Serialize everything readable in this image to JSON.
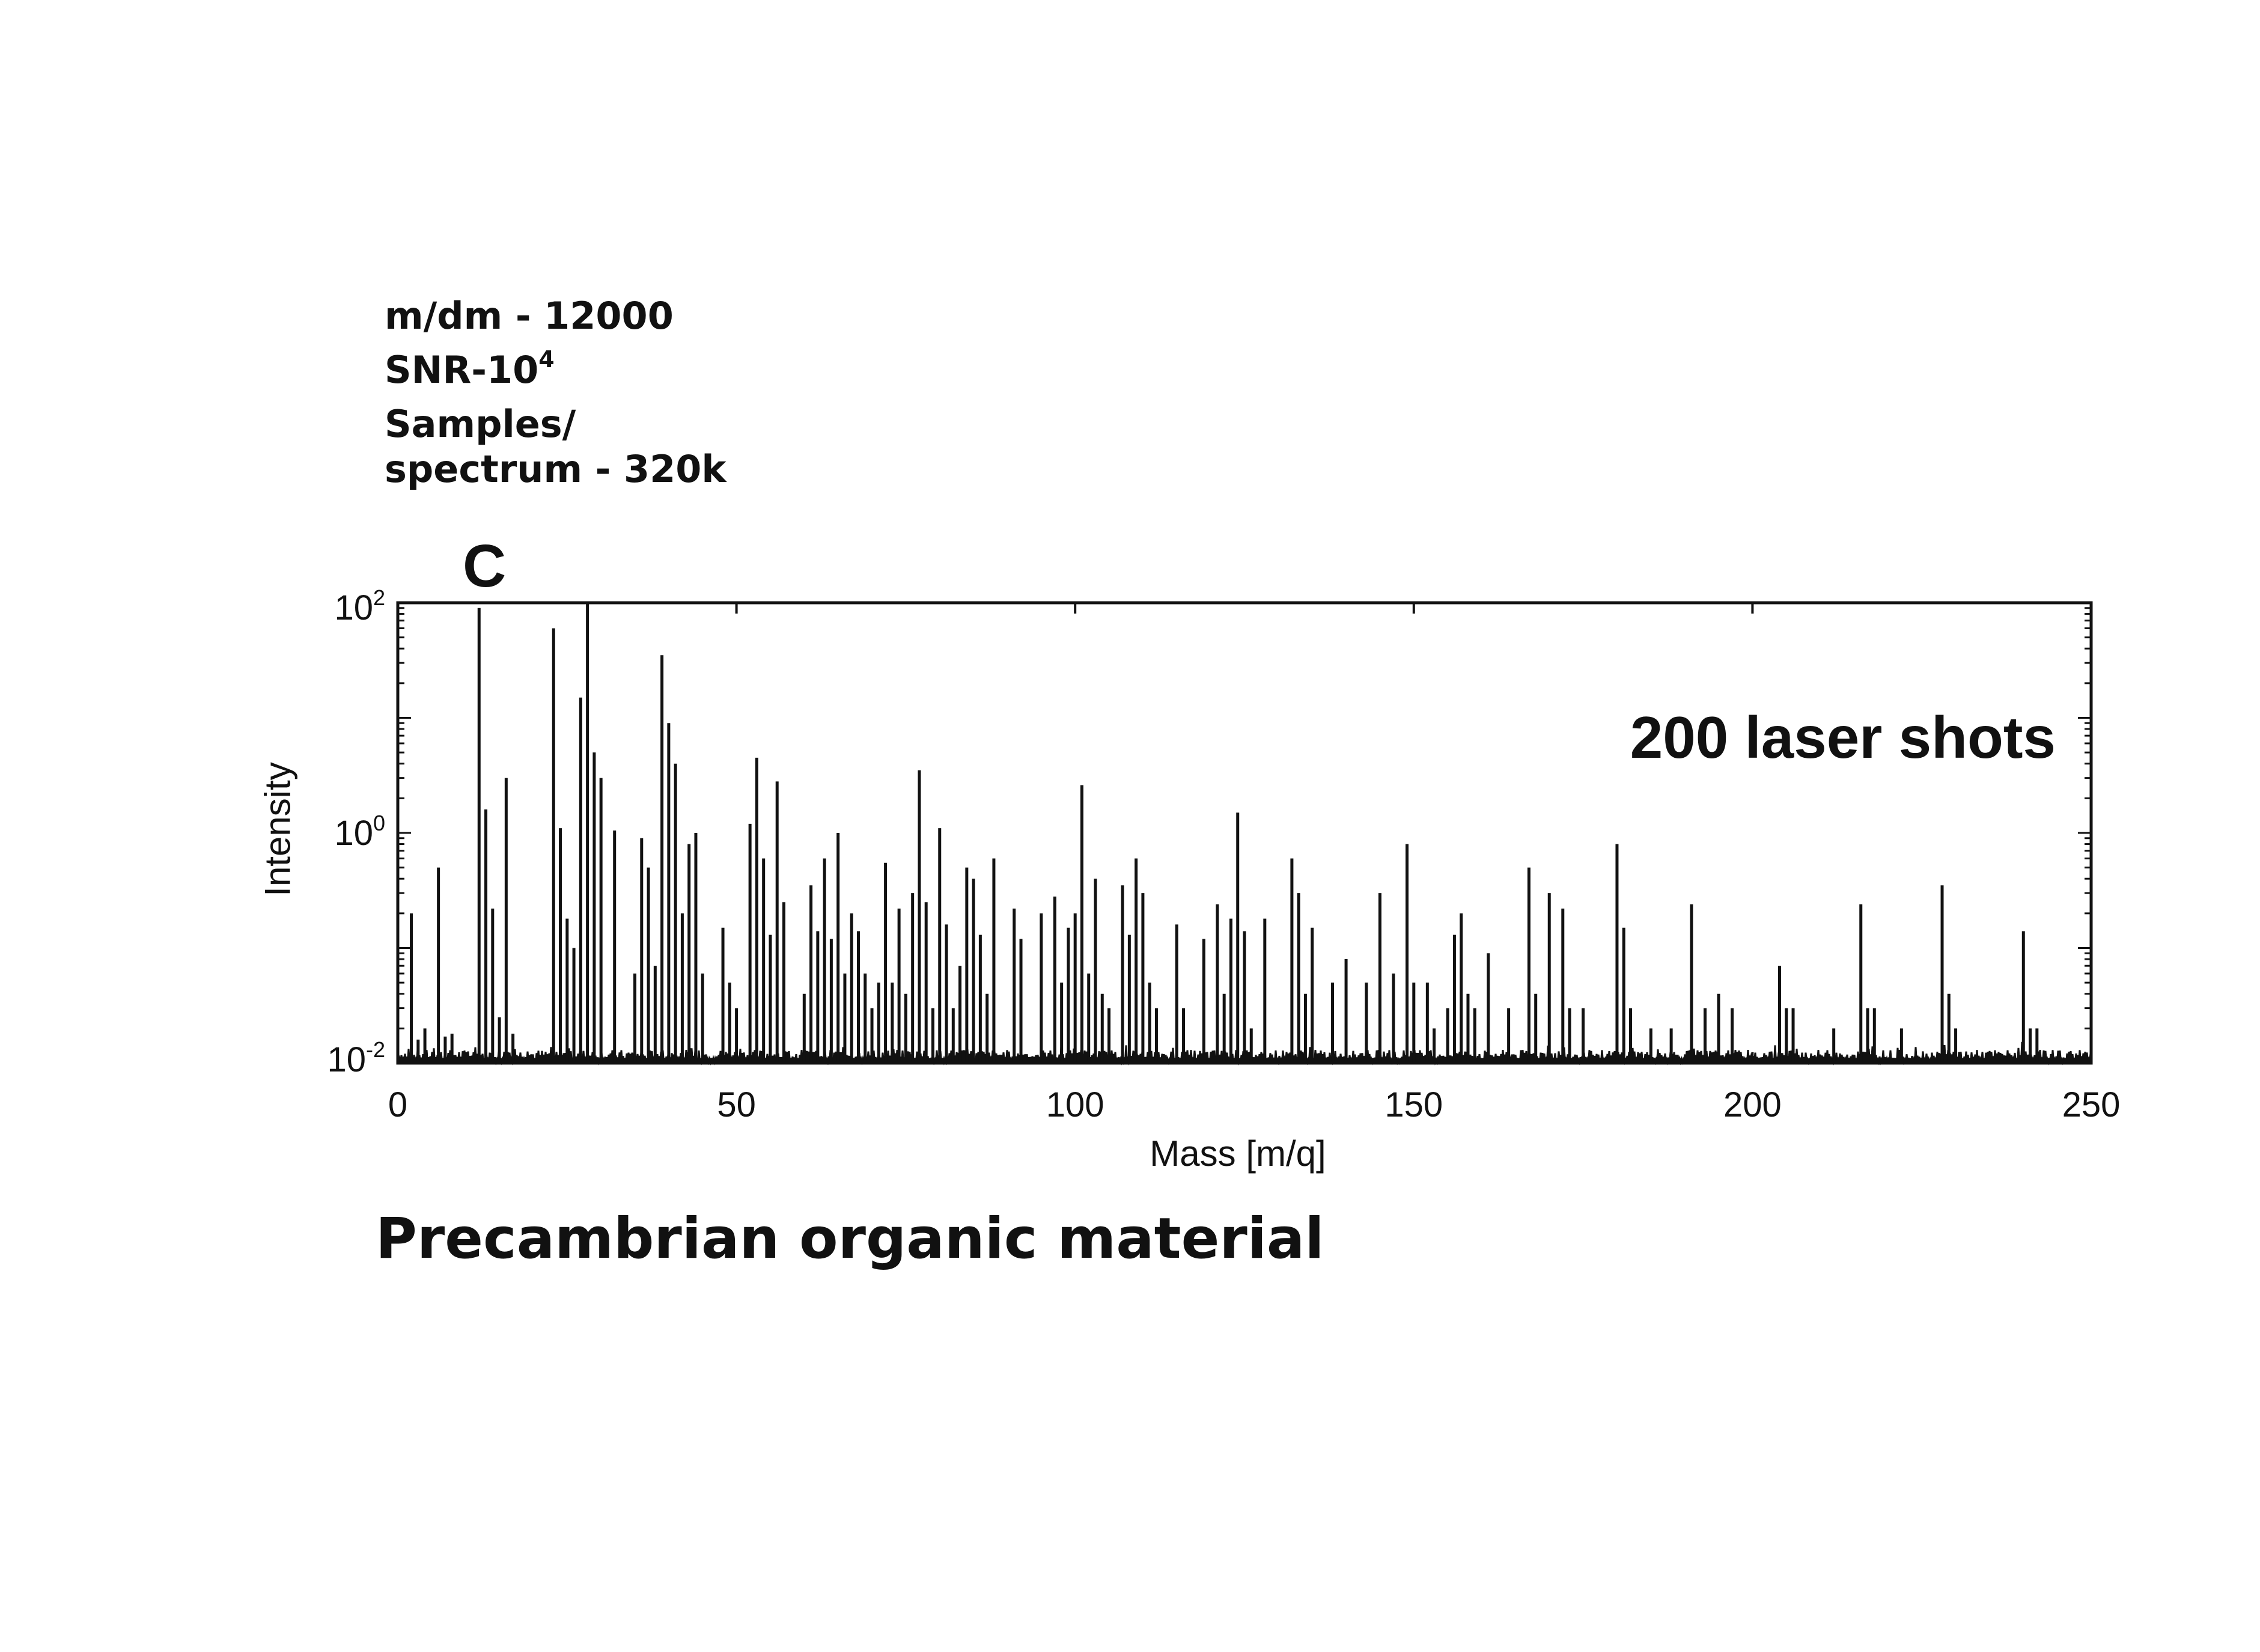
{
  "info": {
    "line1": "m/dm - 12000",
    "snr_prefix": "SNR-10",
    "snr_exp": "4",
    "line3": "Samples/",
    "line4": "spectrum - 320k"
  },
  "panel_letter": "C",
  "caption": "Precambrian organic material",
  "chart_data": {
    "type": "bar",
    "inset_label": "200 laser shots",
    "xlabel": "Mass [m/q]",
    "ylabel": "Intensity",
    "xlim": [
      0,
      250
    ],
    "ylim": [
      0.01,
      100
    ],
    "yscale": "log",
    "grid": false,
    "legend": "none",
    "x_ticks": [
      "0",
      "50",
      "100",
      "150",
      "200",
      "250"
    ],
    "y_ticks": [
      {
        "base": "10",
        "exp": "2"
      },
      {
        "base": "10",
        "exp": "0"
      },
      {
        "base": "10",
        "exp": "-2"
      }
    ],
    "noise_floor": 0.012,
    "peaks": [
      [
        2,
        0.2
      ],
      [
        3,
        0.016
      ],
      [
        4,
        0.02
      ],
      [
        6,
        0.5
      ],
      [
        7,
        0.017
      ],
      [
        8,
        0.018
      ],
      [
        12,
        90
      ],
      [
        13,
        1.6
      ],
      [
        14,
        0.22
      ],
      [
        15,
        0.025
      ],
      [
        16,
        3
      ],
      [
        17,
        0.018
      ],
      [
        23,
        60
      ],
      [
        24,
        1.1
      ],
      [
        25,
        0.18
      ],
      [
        26,
        0.1
      ],
      [
        27,
        15
      ],
      [
        28,
        100
      ],
      [
        29,
        5
      ],
      [
        30,
        3
      ],
      [
        32,
        1.05
      ],
      [
        35,
        0.06
      ],
      [
        36,
        0.9
      ],
      [
        37,
        0.5
      ],
      [
        38,
        0.07
      ],
      [
        39,
        35
      ],
      [
        40,
        9
      ],
      [
        41,
        4
      ],
      [
        42,
        0.2
      ],
      [
        43,
        0.8
      ],
      [
        44,
        1.0
      ],
      [
        45,
        0.06
      ],
      [
        48,
        0.15
      ],
      [
        49,
        0.05
      ],
      [
        50,
        0.03
      ],
      [
        52,
        1.2
      ],
      [
        53,
        4.5
      ],
      [
        54,
        0.6
      ],
      [
        55,
        0.13
      ],
      [
        56,
        2.8
      ],
      [
        57,
        0.25
      ],
      [
        60,
        0.04
      ],
      [
        61,
        0.35
      ],
      [
        62,
        0.14
      ],
      [
        63,
        0.6
      ],
      [
        64,
        0.12
      ],
      [
        65,
        1.0
      ],
      [
        66,
        0.06
      ],
      [
        67,
        0.2
      ],
      [
        68,
        0.14
      ],
      [
        69,
        0.06
      ],
      [
        70,
        0.03
      ],
      [
        71,
        0.05
      ],
      [
        72,
        0.55
      ],
      [
        73,
        0.05
      ],
      [
        74,
        0.22
      ],
      [
        75,
        0.04
      ],
      [
        76,
        0.3
      ],
      [
        77,
        3.5
      ],
      [
        78,
        0.25
      ],
      [
        79,
        0.03
      ],
      [
        80,
        1.1
      ],
      [
        81,
        0.16
      ],
      [
        82,
        0.03
      ],
      [
        83,
        0.07
      ],
      [
        84,
        0.5
      ],
      [
        85,
        0.4
      ],
      [
        86,
        0.13
      ],
      [
        87,
        0.04
      ],
      [
        88,
        0.6
      ],
      [
        91,
        0.22
      ],
      [
        92,
        0.12
      ],
      [
        95,
        0.2
      ],
      [
        97,
        0.28
      ],
      [
        98,
        0.05
      ],
      [
        99,
        0.15
      ],
      [
        100,
        0.2
      ],
      [
        101,
        2.6
      ],
      [
        102,
        0.06
      ],
      [
        103,
        0.4
      ],
      [
        104,
        0.04
      ],
      [
        105,
        0.03
      ],
      [
        107,
        0.35
      ],
      [
        108,
        0.13
      ],
      [
        109,
        0.6
      ],
      [
        110,
        0.3
      ],
      [
        111,
        0.05
      ],
      [
        112,
        0.03
      ],
      [
        115,
        0.16
      ],
      [
        116,
        0.03
      ],
      [
        119,
        0.12
      ],
      [
        121,
        0.24
      ],
      [
        122,
        0.04
      ],
      [
        123,
        0.18
      ],
      [
        124,
        1.5
      ],
      [
        125,
        0.14
      ],
      [
        126,
        0.02
      ],
      [
        128,
        0.18
      ],
      [
        132,
        0.6
      ],
      [
        133,
        0.3
      ],
      [
        134,
        0.04
      ],
      [
        135,
        0.15
      ],
      [
        138,
        0.05
      ],
      [
        140,
        0.08
      ],
      [
        143,
        0.05
      ],
      [
        145,
        0.3
      ],
      [
        147,
        0.06
      ],
      [
        149,
        0.8
      ],
      [
        150,
        0.05
      ],
      [
        152,
        0.05
      ],
      [
        153,
        0.02
      ],
      [
        155,
        0.03
      ],
      [
        156,
        0.13
      ],
      [
        157,
        0.2
      ],
      [
        158,
        0.04
      ],
      [
        159,
        0.03
      ],
      [
        161,
        0.09
      ],
      [
        164,
        0.03
      ],
      [
        167,
        0.5
      ],
      [
        168,
        0.04
      ],
      [
        170,
        0.3
      ],
      [
        172,
        0.22
      ],
      [
        173,
        0.03
      ],
      [
        175,
        0.03
      ],
      [
        180,
        0.8
      ],
      [
        181,
        0.15
      ],
      [
        182,
        0.03
      ],
      [
        185,
        0.02
      ],
      [
        188,
        0.02
      ],
      [
        191,
        0.24
      ],
      [
        193,
        0.03
      ],
      [
        195,
        0.04
      ],
      [
        197,
        0.03
      ],
      [
        204,
        0.07
      ],
      [
        205,
        0.03
      ],
      [
        206,
        0.03
      ],
      [
        212,
        0.02
      ],
      [
        216,
        0.24
      ],
      [
        217,
        0.03
      ],
      [
        218,
        0.03
      ],
      [
        222,
        0.02
      ],
      [
        228,
        0.35
      ],
      [
        229,
        0.04
      ],
      [
        230,
        0.02
      ],
      [
        240,
        0.14
      ],
      [
        241,
        0.02
      ],
      [
        242,
        0.02
      ]
    ]
  }
}
